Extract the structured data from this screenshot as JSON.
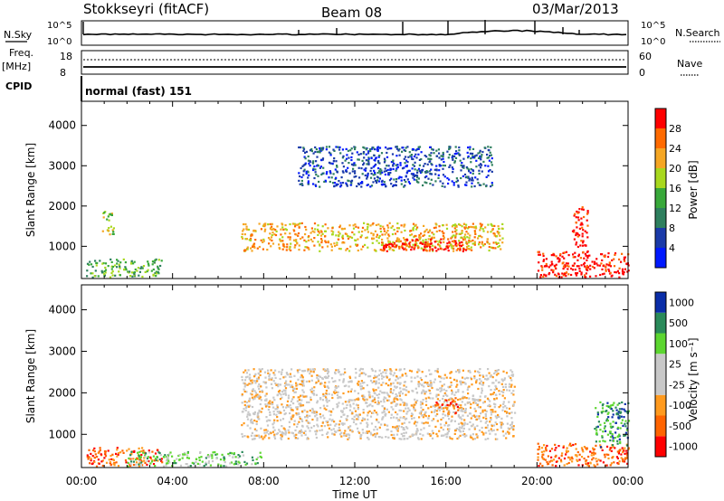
{
  "header": {
    "station": "Stokkseyri (fitACF)",
    "beam": "Beam 08",
    "date": "03/Mar/2013"
  },
  "strips": {
    "nsky_label": "N.Sky",
    "nsky_ticks": [
      "10^5",
      "10^0"
    ],
    "nsearch_label": "N.Search",
    "nsearch_ticks": [
      "10^5",
      "10^0"
    ],
    "freq_label": "Freq.",
    "freq_unit": "[MHz]",
    "freq_ticks": [
      "18",
      "8"
    ],
    "nave_label": "Nave",
    "nave_ticks": [
      "60",
      "0"
    ],
    "cpid_label": "CPID",
    "cpid_value": "normal (fast) 151"
  },
  "colors": {
    "power": [
      "#0019ff",
      "#1a3aa8",
      "#2e7f5e",
      "#38a83a",
      "#a8d81e",
      "#f5a623",
      "#ff6a00",
      "#ff0000"
    ],
    "velocity": [
      "#ff0000",
      "#ff6400",
      "#ff9a1e",
      "#c8c8c8",
      "#c8c8c8",
      "#5cd630",
      "#2a8a5a",
      "#0a2da8"
    ],
    "ground": "#bdbdbd"
  },
  "chart_data": [
    {
      "type": "heatmap",
      "panel": "power",
      "ylabel": "Slant Range [km]",
      "y_ticks": [
        1000,
        2000,
        3000,
        4000
      ],
      "ylim": [
        200,
        4600
      ],
      "xlim_hours": [
        0,
        24
      ],
      "x_ticks": [
        "00:00",
        "04:00",
        "08:00",
        "12:00",
        "16:00",
        "20:00",
        "00:00"
      ],
      "colorbar_label": "Power [dB]",
      "colorbar_ticks": [
        "4",
        "8",
        "12",
        "16",
        "20",
        "24",
        "28"
      ],
      "regions": [
        {
          "hour_start": 0.2,
          "hour_end": 3.5,
          "range_start": 250,
          "range_end": 700,
          "level": 3
        },
        {
          "hour_start": 0.9,
          "hour_end": 1.4,
          "range_start": 1300,
          "range_end": 1900,
          "level": 4
        },
        {
          "hour_start": 7.0,
          "hour_end": 18.5,
          "range_start": 900,
          "range_end": 1600,
          "level": 5
        },
        {
          "hour_start": 13.0,
          "hour_end": 17.0,
          "range_start": 900,
          "range_end": 1200,
          "level": 7
        },
        {
          "hour_start": 9.5,
          "hour_end": 18.0,
          "range_start": 2500,
          "range_end": 3500,
          "level": 1
        },
        {
          "hour_start": 20.0,
          "hour_end": 24.0,
          "range_start": 250,
          "range_end": 900,
          "level": 7
        },
        {
          "hour_start": 21.5,
          "hour_end": 22.2,
          "range_start": 1000,
          "range_end": 2000,
          "level": 7
        }
      ]
    },
    {
      "type": "heatmap",
      "panel": "velocity",
      "ylabel": "Slant Range [km]",
      "y_ticks": [
        1000,
        2000,
        3000,
        4000
      ],
      "ylim": [
        200,
        4600
      ],
      "xlim_hours": [
        0,
        24
      ],
      "x_ticks": [
        "00:00",
        "04:00",
        "08:00",
        "12:00",
        "16:00",
        "20:00",
        "00:00"
      ],
      "xlabel": "Time UT",
      "colorbar_label": "Velocity [m s⁻¹]",
      "colorbar_ticks": [
        "1000",
        "500",
        "100",
        "25",
        "-25",
        "-100",
        "-500",
        "-1000"
      ],
      "regions": [
        {
          "hour_start": 0.2,
          "hour_end": 3.5,
          "range_start": 250,
          "range_end": 700,
          "level": 1
        },
        {
          "hour_start": 2.0,
          "hour_end": 8.0,
          "range_start": 250,
          "range_end": 600,
          "level": 5
        },
        {
          "hour_start": 7.0,
          "hour_end": 19.0,
          "range_start": 900,
          "range_end": 2600,
          "level": 3
        },
        {
          "hour_start": 15.5,
          "hour_end": 16.5,
          "range_start": 1500,
          "range_end": 1900,
          "level": 1
        },
        {
          "hour_start": 20.0,
          "hour_end": 24.0,
          "range_start": 250,
          "range_end": 800,
          "level": 1
        },
        {
          "hour_start": 22.5,
          "hour_end": 24.0,
          "range_start": 700,
          "range_end": 1800,
          "level": 6
        }
      ]
    }
  ]
}
